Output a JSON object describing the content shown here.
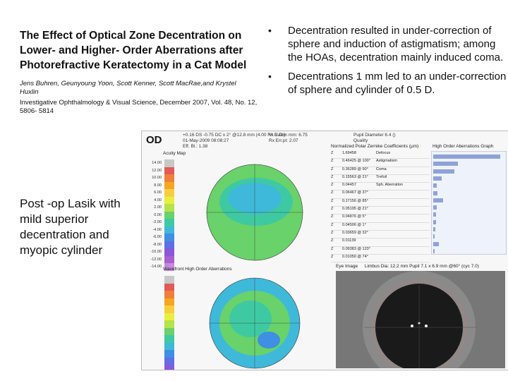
{
  "slide": {
    "title": "The Effect of Optical Zone Decentration on Lower- and Higher- Order Aberrations after Photorefractive Keratectomy in a Cat Model",
    "authors": "Jens Buhren, Geunyoung Yoon, Scott Kenner, Scott MacRae,and Krystel Huxlin",
    "journal": "Investigative Ophthalmology & Visual Science, December 2007, Vol. 48, No. 12, 5806- 5814",
    "bullets": [
      "Decentration resulted in under-correction of sphere and induction of astigmatism; among the HOAs, decentration mainly induced coma.",
      "Decentrations 1 mm led to an under-correction of sphere and cylinder of 0.5 D."
    ],
    "caption": "Post -op Lasik with mild superior decentration and myopic cylinder"
  },
  "report": {
    "eye_label": "OD",
    "header_lines": [
      "+0.16 DS -0.75 DC x 2° @12.8 mm (4.00 Rx Calc)",
      "01-May-2009 08:08:27",
      "Eff. Bl.: 1.38"
    ],
    "header_lines2": [
      "Vt.R.Dim mm: 6.75",
      "Rx Err.pt: 2.07"
    ],
    "header_lines3": [
      "Pupil Diameter 6.4 ()",
      "Quality"
    ],
    "acuity_title": "Acuity Map",
    "wavefront_title": "Wavefront High Order Aberrations",
    "zernike_title": "Normalized Polar Zernike Coefficients (μm)",
    "hoa_title": "High Order Aberrations Graph",
    "eye_title": "Eye Image",
    "eye_info": "Limbus Dia: 12.2 mm   Pupil 7.1 x 6.9 mm @60° (cyc 7.0)",
    "scale_labels": [
      "14.00",
      "12.00",
      "10.00",
      "8.00",
      "6.00",
      "4.00",
      "2.00",
      "0.00",
      "-2.00",
      "-4.00",
      "-6.00",
      "-8.00",
      "-10.00",
      "-12.00",
      "-14.00"
    ],
    "scale_colors": [
      "#c8c8c8",
      "#e25a5a",
      "#f07f3a",
      "#f5a623",
      "#f7cf3e",
      "#e8ef3f",
      "#b6e24a",
      "#69d26a",
      "#3fc9a2",
      "#3fb9d9",
      "#3f8fe3",
      "#5f6fe5",
      "#8a58d8",
      "#a95fd0",
      "#c78ae0"
    ],
    "zernike_rows": [
      {
        "z": "Z",
        "v": "1.69458",
        "l": "Defocus"
      },
      {
        "z": "Z",
        "v": "0.46425 @ 100°",
        "l": "Astigmatism"
      },
      {
        "z": "Z",
        "v": "0.36289 @ 90°",
        "l": "Coma"
      },
      {
        "z": "Z",
        "v": "0.15563 @ 21°",
        "l": "Trefoil"
      },
      {
        "z": "Z",
        "v": "0.04457",
        "l": "Sph. Aberration"
      },
      {
        "z": "Z",
        "v": "0.06467 @ 37°",
        "l": ""
      },
      {
        "z": "Z",
        "v": "0.17156 @ 85°",
        "l": ""
      },
      {
        "z": "Z",
        "v": "0.05195 @ 21°",
        "l": ""
      },
      {
        "z": "Z",
        "v": "0.04876 @ 5°",
        "l": ""
      },
      {
        "z": "Z",
        "v": "0.04506 @ 1°",
        "l": ""
      },
      {
        "z": "Z",
        "v": "0.03659 @ 32°",
        "l": ""
      },
      {
        "z": "Z",
        "v": "0.01139",
        "l": ""
      },
      {
        "z": "Z",
        "v": "0.09383 @ 123°",
        "l": ""
      },
      {
        "z": "Z",
        "v": "0.01050 @ 74°",
        "l": ""
      }
    ],
    "hoa_values": [
      0.95,
      0.35,
      0.3,
      0.12,
      0.05,
      0.06,
      0.14,
      0.05,
      0.04,
      0.04,
      0.03,
      0.01,
      0.08,
      0.02
    ]
  }
}
